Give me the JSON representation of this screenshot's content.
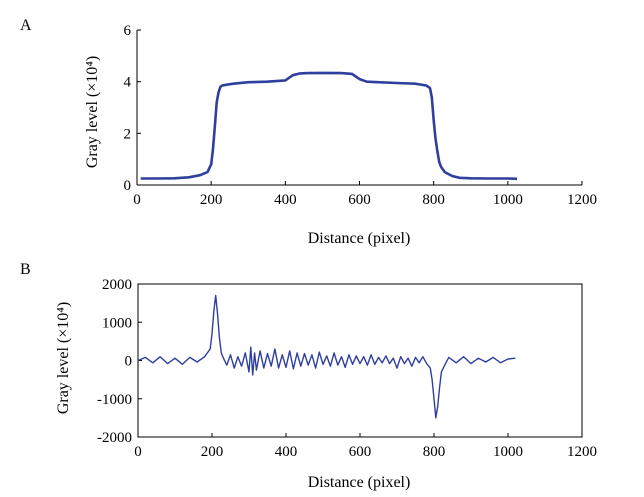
{
  "colors": {
    "line": "#2f3f9e",
    "axis": "#000000"
  },
  "chart_data": [
    {
      "panel_label": "A",
      "type": "line",
      "xlabel": "Distance (pixel)",
      "ylabel": "Gray level (×10⁴)",
      "xlim": [
        0,
        1200
      ],
      "ylim": [
        0,
        6
      ],
      "xticks": [
        "0",
        "200",
        "400",
        "600",
        "800",
        "1000",
        "1200"
      ],
      "yticks": [
        "0",
        "2",
        "4",
        "6"
      ],
      "grid": false,
      "series": [
        {
          "x": [
            10,
            50,
            100,
            140,
            170,
            190,
            200,
            205,
            210,
            215,
            220,
            225,
            230,
            240,
            260,
            300,
            350,
            400,
            420,
            440,
            460,
            500,
            550,
            580,
            600,
            620,
            650,
            700,
            750,
            780,
            790,
            795,
            800,
            805,
            810,
            815,
            820,
            830,
            850,
            870,
            900,
            950,
            1000,
            1025
          ],
          "y": [
            0.25,
            0.25,
            0.26,
            0.3,
            0.38,
            0.5,
            0.8,
            1.4,
            2.3,
            3.2,
            3.6,
            3.8,
            3.85,
            3.88,
            3.92,
            3.98,
            4.0,
            4.05,
            4.25,
            4.32,
            4.33,
            4.34,
            4.33,
            4.3,
            4.1,
            4.0,
            3.98,
            3.95,
            3.92,
            3.85,
            3.75,
            3.4,
            2.5,
            1.8,
            1.3,
            0.9,
            0.7,
            0.5,
            0.35,
            0.28,
            0.26,
            0.25,
            0.25,
            0.24
          ]
        }
      ]
    },
    {
      "panel_label": "B",
      "type": "line",
      "xlabel": "Distance (pixel)",
      "ylabel": "Gray level (×10⁴)",
      "xlim": [
        0,
        1200
      ],
      "ylim": [
        -2000,
        2000
      ],
      "xticks": [
        "0",
        "200",
        "400",
        "600",
        "800",
        "1000",
        "1200"
      ],
      "yticks": [
        "2000",
        "1000",
        "0",
        "-1000",
        "-2000"
      ],
      "grid": false,
      "series": [
        {
          "x": [
            0,
            20,
            40,
            60,
            80,
            100,
            120,
            140,
            160,
            180,
            195,
            200,
            205,
            210,
            215,
            220,
            225,
            230,
            240,
            250,
            260,
            270,
            280,
            290,
            300,
            305,
            310,
            315,
            320,
            330,
            340,
            350,
            360,
            370,
            380,
            390,
            400,
            410,
            420,
            430,
            440,
            450,
            460,
            470,
            480,
            490,
            500,
            510,
            520,
            530,
            540,
            550,
            560,
            570,
            580,
            590,
            600,
            610,
            620,
            630,
            640,
            650,
            660,
            670,
            680,
            690,
            700,
            710,
            720,
            730,
            740,
            750,
            760,
            770,
            780,
            790,
            795,
            800,
            805,
            810,
            815,
            820,
            830,
            840,
            860,
            880,
            900,
            920,
            940,
            960,
            980,
            1000,
            1020
          ],
          "y": [
            0,
            80,
            -60,
            100,
            -80,
            60,
            -100,
            80,
            -40,
            100,
            300,
            700,
            1300,
            1700,
            1200,
            600,
            200,
            80,
            -120,
            150,
            -200,
            100,
            -150,
            200,
            -300,
            350,
            -380,
            200,
            -250,
            250,
            -200,
            180,
            -150,
            300,
            -200,
            150,
            -180,
            250,
            -220,
            200,
            -150,
            180,
            -120,
            150,
            -200,
            220,
            -100,
            120,
            -150,
            200,
            -120,
            100,
            -180,
            150,
            -100,
            120,
            -80,
            100,
            -120,
            150,
            -100,
            80,
            -60,
            120,
            -80,
            60,
            -200,
            100,
            -80,
            60,
            -150,
            80,
            -60,
            100,
            -80,
            -200,
            -500,
            -1000,
            -1500,
            -1200,
            -700,
            -300,
            -100,
            80,
            -60,
            100,
            -80,
            60,
            -40,
            80,
            -60,
            40,
            60
          ]
        }
      ]
    }
  ]
}
